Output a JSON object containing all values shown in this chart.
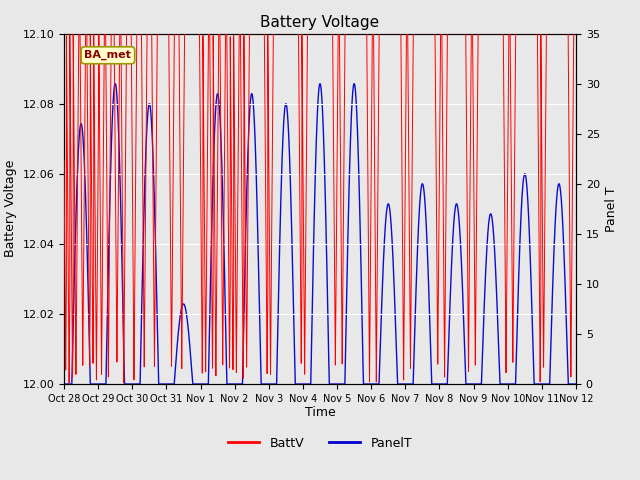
{
  "title": "Battery Voltage",
  "xlabel": "Time",
  "ylabel_left": "Battery Voltage",
  "ylabel_right": "Panel T",
  "annotation_text": "BA_met",
  "bg_color": "#e8e8e8",
  "plot_bg_color": "#f0f0f0",
  "batt_color": "#ff0000",
  "panel_color": "#0000cc",
  "ylim_left": [
    12.0,
    12.1
  ],
  "ylim_right": [
    0,
    35
  ],
  "x_tick_labels": [
    "Oct 28",
    "Oct 29",
    "Oct 30",
    "Oct 31",
    "Nov 1",
    "Nov 2",
    "Nov 3",
    "Nov 4",
    "Nov 5",
    "Nov 6",
    "Nov 7",
    "Nov 8",
    "Nov 9",
    "Nov 10",
    "Nov 11",
    "Nov 12"
  ],
  "panel_day_peaks": [
    26,
    30,
    28,
    8,
    29,
    29,
    28,
    30,
    30,
    18,
    20,
    18,
    17,
    21,
    20
  ],
  "batt_drop_times": [
    0.05,
    0.15,
    0.25,
    0.35,
    0.55,
    0.75,
    0.85,
    0.95,
    1.1,
    1.3,
    1.55,
    1.75,
    2.05,
    2.35,
    2.65,
    3.15,
    3.45,
    4.05,
    4.15,
    4.35,
    4.45,
    4.65,
    4.85,
    4.95,
    5.05,
    5.25,
    5.35,
    5.95,
    6.05,
    6.95,
    7.05,
    7.95,
    8.15,
    8.95,
    9.15,
    9.95,
    10.15,
    10.95,
    11.15,
    11.85,
    12.05,
    12.95,
    13.15,
    13.95,
    14.05,
    14.85
  ]
}
